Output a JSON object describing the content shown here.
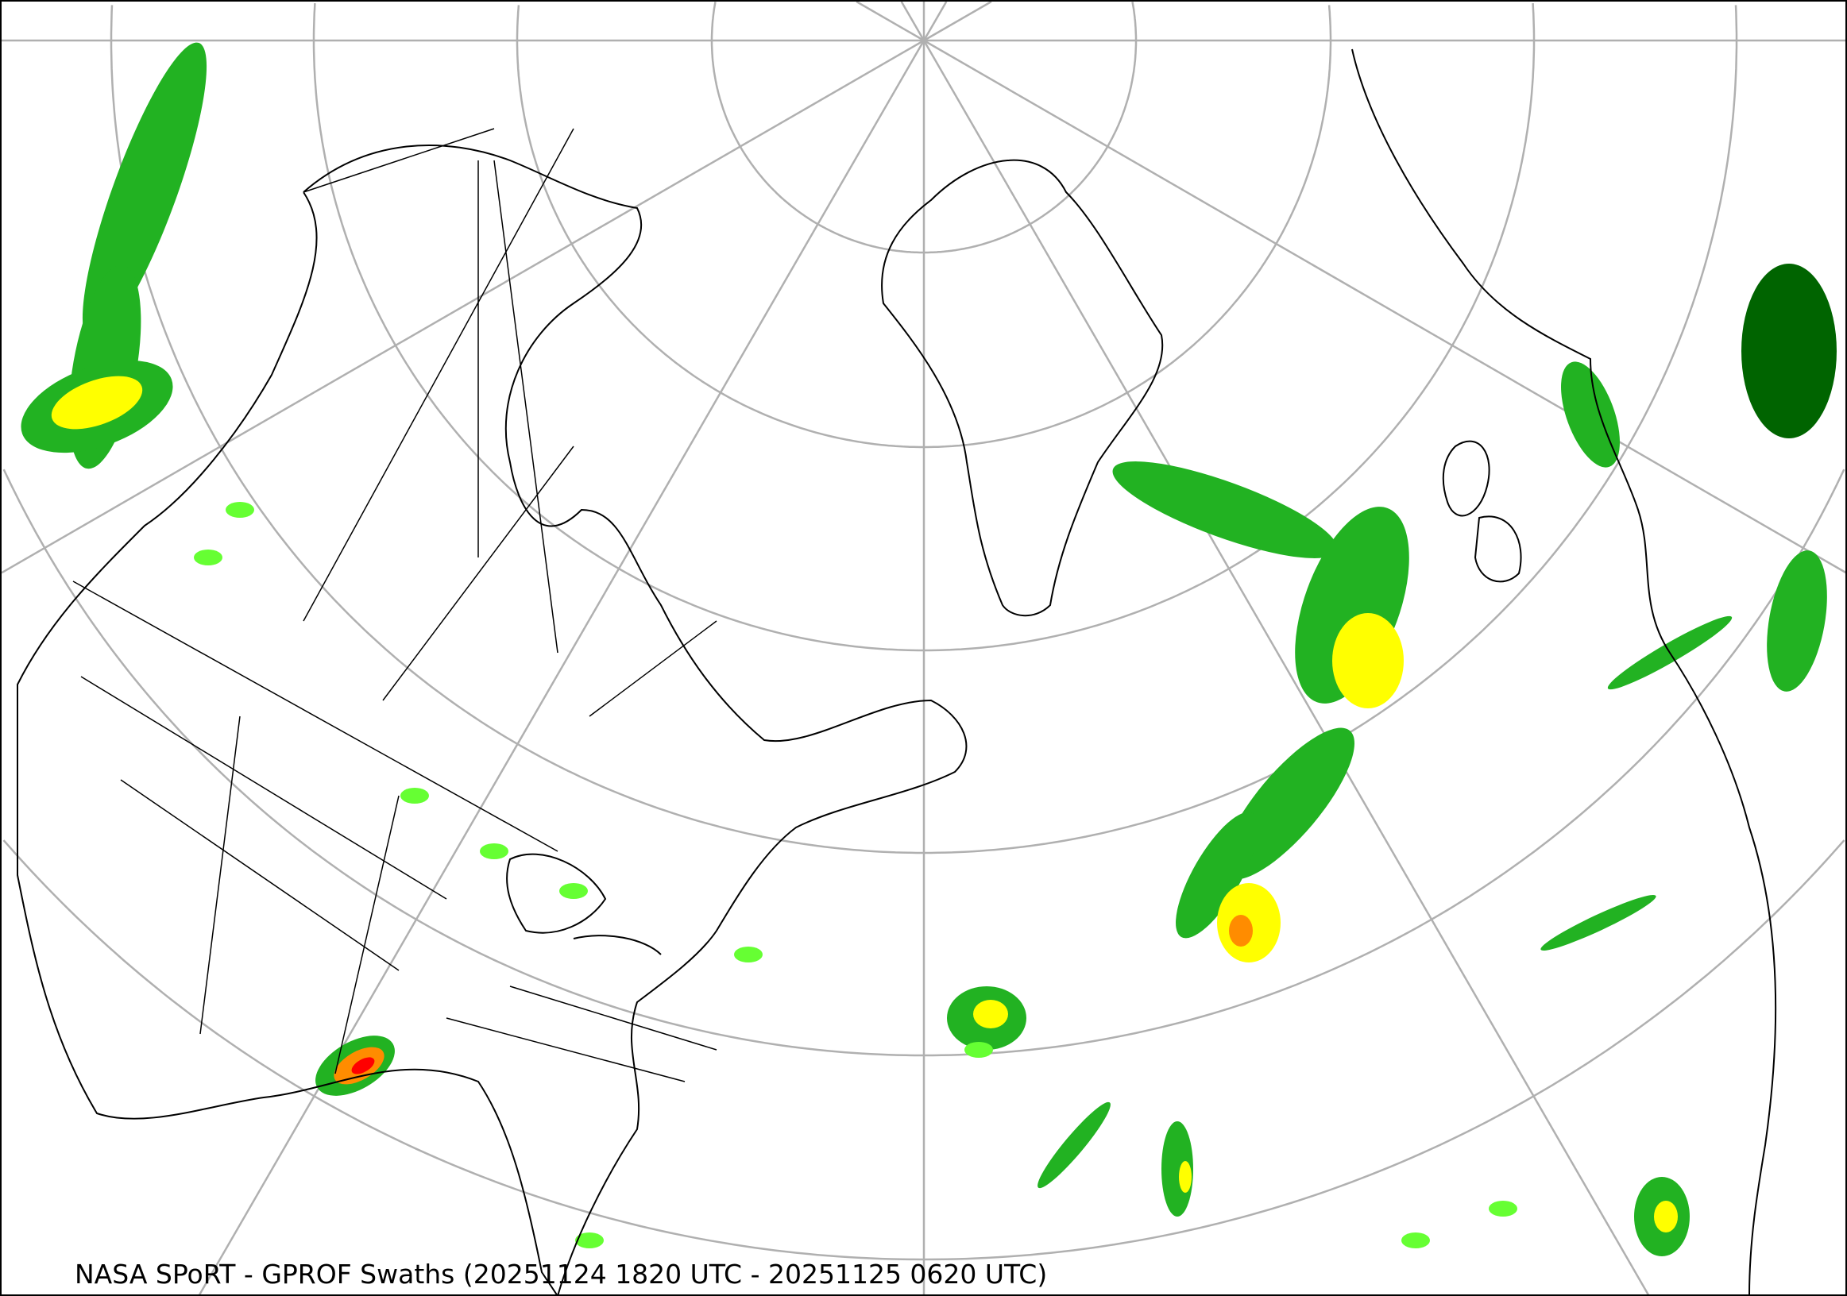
{
  "map": {
    "caption": "NASA SPoRT - GPROF Swaths (20251124 1820 UTC - 20251125 0620 UTC)",
    "projection": "north-polar-stereographic",
    "colors": {
      "background": "#ffffff",
      "graticule": "#b0b0b0",
      "boundaries": "#000000",
      "precip_light": "#006400",
      "precip_moderate": "#22b222",
      "precip_bright": "#66ff33",
      "precip_heavy": "#ffff00",
      "precip_intense": "#ff8c00",
      "precip_extreme": "#ff0000"
    }
  }
}
